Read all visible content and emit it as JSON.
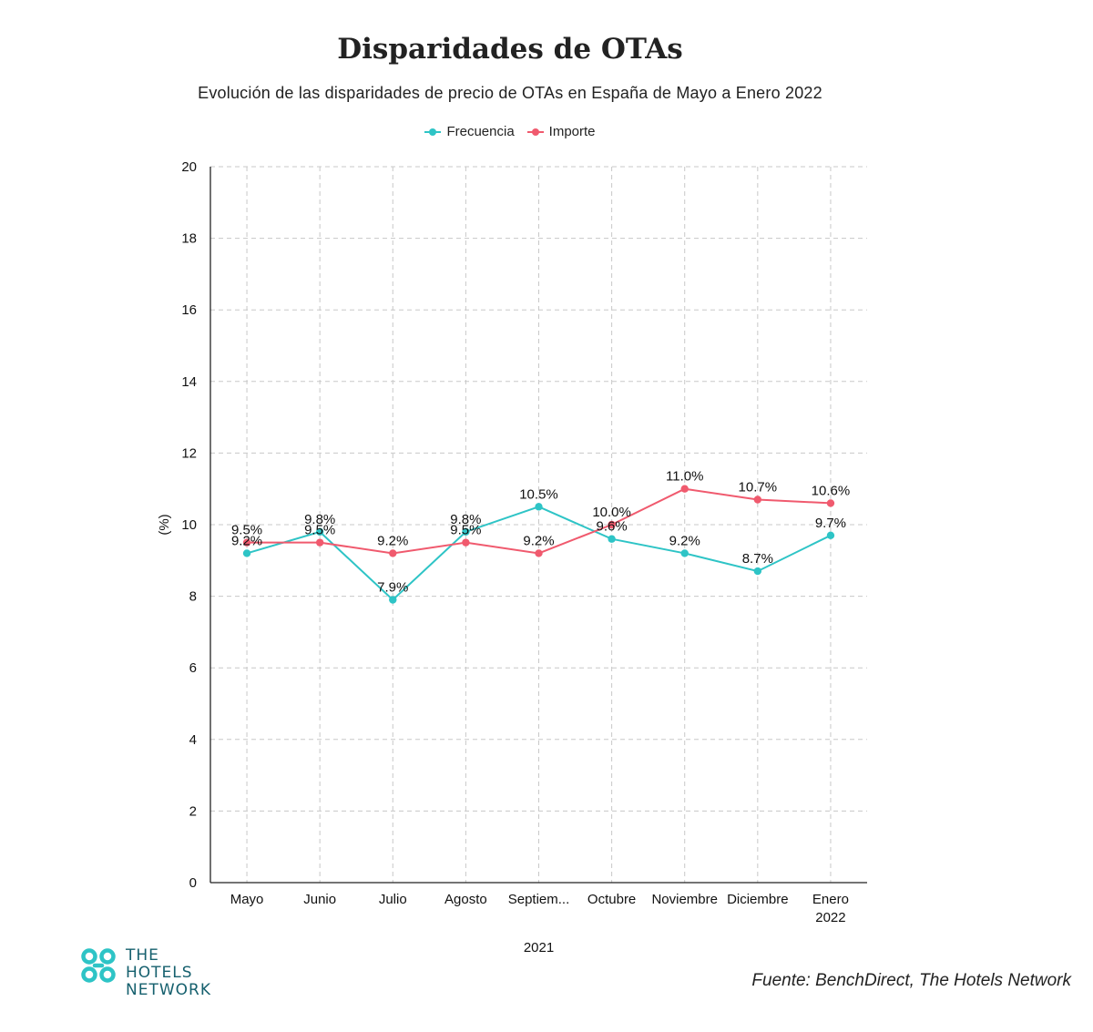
{
  "header": {
    "title": "Disparidades de OTAs",
    "subtitle": "Evolución de las disparidades de precio de OTAs en España de Mayo a Enero 2022"
  },
  "legend": {
    "items": [
      {
        "label": "Frecuencia",
        "color": "#2ec4c6"
      },
      {
        "label": "Importe",
        "color": "#f05a6e"
      }
    ]
  },
  "chart_data": {
    "type": "line",
    "title": "Disparidades de OTAs",
    "subtitle": "Evolución de las disparidades de precio de OTAs en España de Mayo a Enero 2022",
    "categories": [
      "Mayo",
      "Junio",
      "Julio",
      "Agosto",
      "Septiem...",
      "Octubre",
      "Noviembre",
      "Diciembre",
      "Enero\n2022"
    ],
    "series": [
      {
        "name": "Frecuencia",
        "color": "#2ec4c6",
        "values": [
          9.2,
          9.8,
          7.9,
          9.8,
          10.5,
          9.6,
          9.2,
          8.7,
          9.7
        ],
        "labels": [
          "9.2%",
          "9.8%",
          "7.9%",
          "9.8%",
          "10.5%",
          "9.6%",
          "9.2%",
          "8.7%",
          "9.7%"
        ]
      },
      {
        "name": "Importe",
        "color": "#f05a6e",
        "values": [
          9.5,
          9.5,
          9.2,
          9.5,
          9.2,
          10.0,
          11.0,
          10.7,
          10.6
        ],
        "labels": [
          "9.5%",
          "9.5%",
          "9.2%",
          "9.5%",
          "9.2%",
          "10.0%",
          "11.0%",
          "10.7%",
          "10.6%"
        ]
      }
    ],
    "xlabel": "2021",
    "ylabel": "(%)",
    "ylim": [
      0,
      20
    ],
    "yticks": [
      0,
      2,
      4,
      6,
      8,
      10,
      12,
      14,
      16,
      18,
      20
    ],
    "grid": true,
    "legend_position": "top-center"
  },
  "footer": {
    "logo_lines": [
      "THE",
      "HOTELS",
      "NETWORK"
    ],
    "source": "Fuente: BenchDirect, The Hotels Network"
  }
}
